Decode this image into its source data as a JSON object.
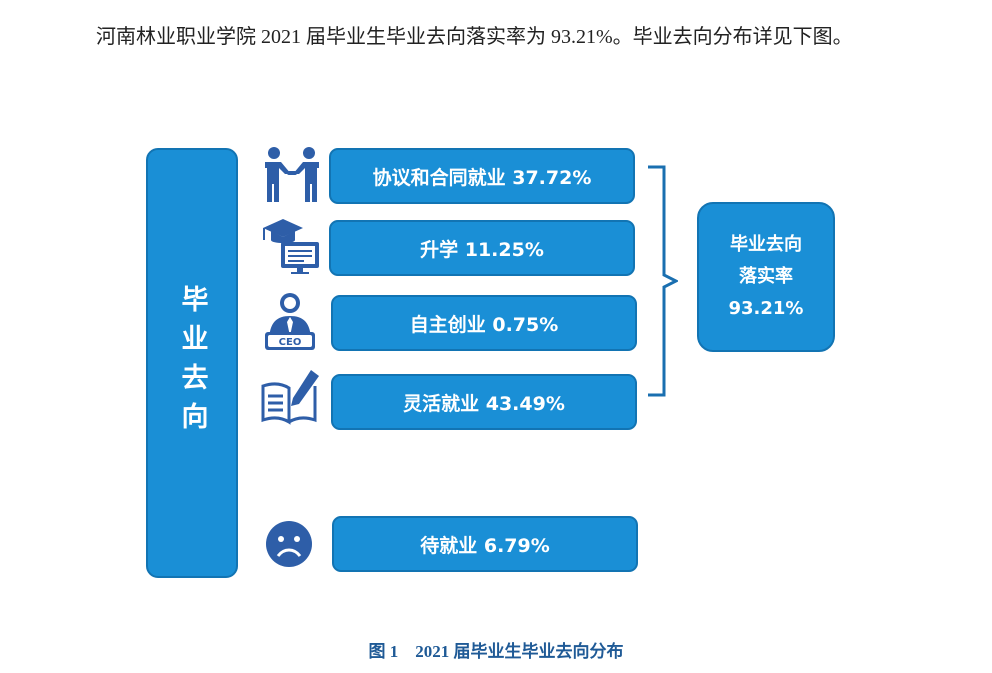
{
  "paragraph": "河南林业职业学院 2021 届毕业生毕业去向落实率为 93.21%。毕业去向分布详见下图。",
  "left_label": "毕业去向",
  "items": [
    {
      "label": "协议和合同就业 37.72%",
      "icon": "handshake-icon"
    },
    {
      "label": "升学 11.25%",
      "icon": "graduation-icon"
    },
    {
      "label": "自主创业 0.75%",
      "icon": "ceo-icon"
    },
    {
      "label": "灵活就业 43.49%",
      "icon": "book-pencil-icon"
    },
    {
      "label": "待就业 6.79%",
      "icon": "sad-face-icon"
    }
  ],
  "ceo_text": "CEO",
  "rate_box": {
    "line1": "毕业去向",
    "line2": "落实率",
    "line3": "93.21%"
  },
  "caption": "图 1　2021 届毕业生毕业去向分布",
  "colors": {
    "box": "#1a8fd6",
    "border": "#1274b3",
    "icon": "#2e5ea8",
    "caption": "#1f5a96"
  }
}
